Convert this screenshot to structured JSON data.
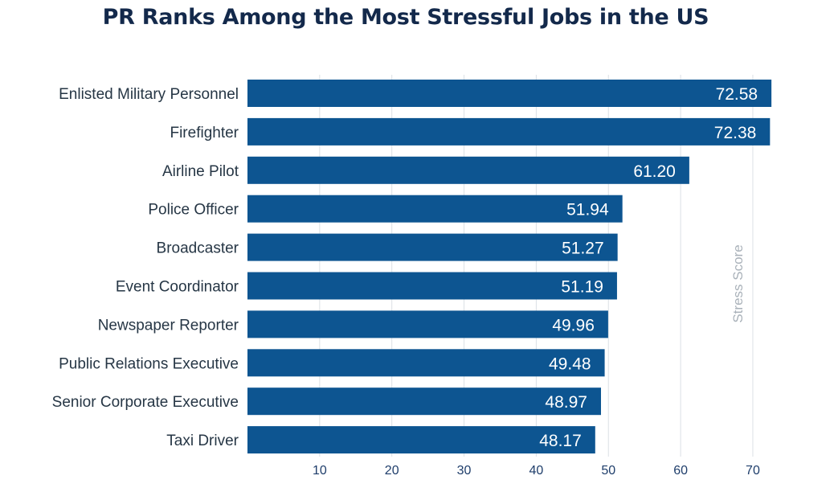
{
  "chart_data": {
    "type": "bar",
    "orientation": "horizontal",
    "title": "PR Ranks Among the Most Stressful Jobs in the US",
    "categories": [
      "Enlisted Military Personnel",
      "Firefighter",
      "Airline Pilot",
      "Police Officer",
      "Broadcaster",
      "Event Coordinator",
      "Newspaper Reporter",
      "Public Relations Executive",
      "Senior Corporate Executive",
      "Taxi Driver"
    ],
    "values": [
      72.58,
      72.38,
      61.2,
      51.94,
      51.27,
      51.19,
      49.96,
      49.48,
      48.97,
      48.17
    ],
    "value_labels": [
      "72.58",
      "72.38",
      "61.20",
      "51.94",
      "51.27",
      "51.19",
      "49.96",
      "49.48",
      "48.97",
      "48.17"
    ],
    "x_ticks": [
      10,
      20,
      30,
      40,
      50,
      60,
      70
    ],
    "x_tick_labels": [
      "10",
      "20",
      "30",
      "40",
      "50",
      "60",
      "70"
    ],
    "xlim": [
      0,
      72.58
    ],
    "xlabel": "Stress Score",
    "ylabel": "",
    "grid": true,
    "bar_color": "#0d5591",
    "value_label_color": "#ffffff",
    "title_color": "#13294b"
  }
}
